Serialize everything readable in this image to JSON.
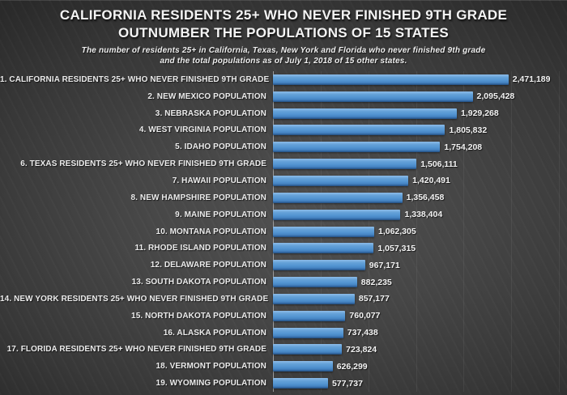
{
  "title": {
    "line1": "CALIFORNIA RESIDENTS 25+ WHO NEVER FINISHED 9TH GRADE",
    "line2": "OUTNUMBER THE POPULATIONS OF 15 STATES"
  },
  "subtitle": {
    "line1": "The number of residents 25+ in California, Texas, New York and Florida who never finished 9th grade",
    "line2": "and the total populations as of July 1, 2018 of 15 other states."
  },
  "colors": {
    "bar_top": "#8dbce8",
    "bar_main": "#5495d2",
    "bar_bottom": "#234d7d",
    "background_center": "#505050",
    "background_edge": "#232323",
    "axis_line": "#9a9a9a",
    "text": "#f4f4f4"
  },
  "chart_data": {
    "type": "bar",
    "orientation": "horizontal",
    "title": "CALIFORNIA RESIDENTS 25+ WHO NEVER FINISHED 9TH GRADE OUTNUMBER THE POPULATIONS OF 15 STATES",
    "subtitle": "The number of residents 25+ in California, Texas, New York and Florida who never finished 9th grade and the total populations as of July 1, 2018 of 15 other states.",
    "xlabel": "",
    "ylabel": "",
    "xlim": [
      0,
      3000000
    ],
    "gridline_interval": 500000,
    "grid": true,
    "legend": false,
    "categories": [
      "1. CALIFORNIA RESIDENTS 25+ WHO NEVER FINISHED 9TH GRADE",
      "2. NEW MEXICO POPULATION",
      "3. NEBRASKA POPULATION",
      "4. WEST VIRGINIA POPULATION",
      "5. IDAHO POPULATION",
      "6. TEXAS RESIDENTS 25+ WHO NEVER FINISHED 9TH GRADE",
      "7. HAWAII POPULATION",
      "8. NEW HAMPSHIRE POPULATION",
      "9. MAINE POPULATION",
      "10. MONTANA POPULATION",
      "11. RHODE ISLAND POPULATION",
      "12. DELAWARE POPULATION",
      "13. SOUTH DAKOTA POPULATION",
      "14. NEW YORK RESIDENTS 25+ WHO NEVER FINISHED 9TH GRADE",
      "15. NORTH DAKOTA POPULATION",
      "16. ALASKA POPULATION",
      "17. FLORIDA RESIDENTS 25+ WHO NEVER FINISHED 9TH GRADE",
      "18. VERMONT POPULATION",
      "19. WYOMING POPULATION"
    ],
    "values": [
      2471189,
      2095428,
      1929268,
      1805832,
      1754208,
      1506111,
      1420491,
      1356458,
      1338404,
      1062305,
      1057315,
      967171,
      882235,
      857177,
      760077,
      737438,
      723824,
      626299,
      577737
    ],
    "value_labels": [
      "2,471,189",
      "2,095,428",
      "1,929,268",
      "1,805,832",
      "1,754,208",
      "1,506,111",
      "1,420,491",
      "1,356,458",
      "1,338,404",
      "1,062,305",
      "1,057,315",
      "967,171",
      "882,235",
      "857,177",
      "760,077",
      "737,438",
      "723,824",
      "626,299",
      "577,737"
    ]
  }
}
